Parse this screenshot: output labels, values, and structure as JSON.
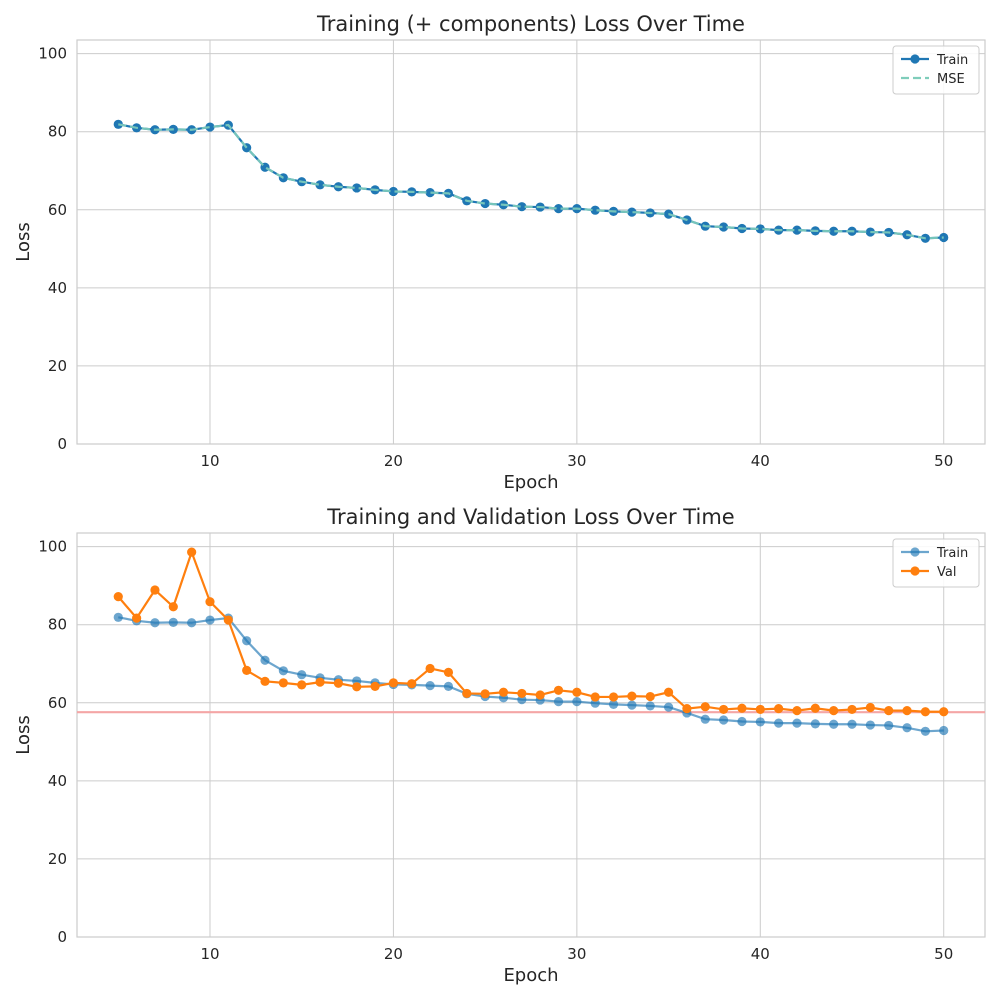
{
  "chart_data": [
    {
      "type": "line",
      "title": "Training (+ components) Loss Over Time",
      "xlabel": "Epoch",
      "ylabel": "Loss",
      "xlim": [
        2.75,
        52.25
      ],
      "ylim": [
        0,
        103.5
      ],
      "xticks": [
        "10",
        "20",
        "30",
        "40",
        "50"
      ],
      "yticks": [
        "0",
        "20",
        "40",
        "60",
        "80",
        "100"
      ],
      "legend_position": "top-right",
      "x": [
        5,
        6,
        7,
        8,
        9,
        10,
        11,
        12,
        13,
        14,
        15,
        16,
        17,
        18,
        19,
        20,
        21,
        22,
        23,
        24,
        25,
        26,
        27,
        28,
        29,
        30,
        31,
        32,
        33,
        34,
        35,
        36,
        37,
        38,
        39,
        40,
        41,
        42,
        43,
        44,
        45,
        46,
        47,
        48,
        49,
        50
      ],
      "series": [
        {
          "name": "Train",
          "color": "#1f77b4",
          "style": "solid-markers",
          "values": [
            81.9,
            81.0,
            80.5,
            80.6,
            80.5,
            81.2,
            81.7,
            75.9,
            70.9,
            68.2,
            67.2,
            66.4,
            65.9,
            65.6,
            65.1,
            64.7,
            64.6,
            64.4,
            64.2,
            62.3,
            61.6,
            61.3,
            60.8,
            60.7,
            60.3,
            60.3,
            59.9,
            59.6,
            59.4,
            59.2,
            58.9,
            57.4,
            55.8,
            55.6,
            55.2,
            55.1,
            54.8,
            54.8,
            54.6,
            54.5,
            54.5,
            54.3,
            54.2,
            53.6,
            52.7,
            52.9
          ]
        },
        {
          "name": "MSE",
          "color": "#7fcdbb",
          "style": "dashed",
          "values": [
            81.9,
            81.0,
            80.5,
            80.6,
            80.5,
            81.2,
            81.7,
            75.9,
            70.9,
            68.2,
            67.2,
            66.4,
            65.9,
            65.6,
            65.1,
            64.7,
            64.6,
            64.4,
            64.2,
            62.3,
            61.6,
            61.3,
            60.8,
            60.7,
            60.3,
            60.3,
            59.9,
            59.6,
            59.4,
            59.2,
            58.9,
            57.4,
            55.8,
            55.6,
            55.2,
            55.1,
            54.8,
            54.8,
            54.6,
            54.5,
            54.5,
            54.3,
            54.2,
            53.6,
            52.7,
            52.9
          ]
        }
      ]
    },
    {
      "type": "line",
      "title": "Training and Validation Loss Over Time",
      "xlabel": "Epoch",
      "ylabel": "Loss",
      "xlim": [
        2.75,
        52.25
      ],
      "ylim": [
        0,
        103.5
      ],
      "xticks": [
        "10",
        "20",
        "30",
        "40",
        "50"
      ],
      "yticks": [
        "0",
        "20",
        "40",
        "60",
        "80",
        "100"
      ],
      "legend_position": "top-right",
      "hline": {
        "value": 57.6,
        "color": "#f4a6a6"
      },
      "x": [
        5,
        6,
        7,
        8,
        9,
        10,
        11,
        12,
        13,
        14,
        15,
        16,
        17,
        18,
        19,
        20,
        21,
        22,
        23,
        24,
        25,
        26,
        27,
        28,
        29,
        30,
        31,
        32,
        33,
        34,
        35,
        36,
        37,
        38,
        39,
        40,
        41,
        42,
        43,
        44,
        45,
        46,
        47,
        48,
        49,
        50
      ],
      "series": [
        {
          "name": "Train",
          "color": "#1f77b4",
          "style": "faded-markers",
          "values": [
            81.9,
            81.0,
            80.5,
            80.6,
            80.5,
            81.2,
            81.7,
            75.9,
            70.9,
            68.2,
            67.2,
            66.4,
            65.9,
            65.6,
            65.1,
            64.7,
            64.6,
            64.4,
            64.2,
            62.3,
            61.6,
            61.3,
            60.8,
            60.7,
            60.3,
            60.3,
            59.9,
            59.6,
            59.4,
            59.2,
            58.9,
            57.4,
            55.8,
            55.6,
            55.2,
            55.1,
            54.8,
            54.8,
            54.6,
            54.5,
            54.5,
            54.3,
            54.2,
            53.6,
            52.7,
            52.9
          ]
        },
        {
          "name": "Val",
          "color": "#ff7f0e",
          "style": "solid-markers",
          "values": [
            87.2,
            81.7,
            88.9,
            84.6,
            98.6,
            85.9,
            81.2,
            68.3,
            65.5,
            65.1,
            64.6,
            65.3,
            65.0,
            64.1,
            64.2,
            65.1,
            64.9,
            68.8,
            67.8,
            62.4,
            62.3,
            62.7,
            62.4,
            62.0,
            63.2,
            62.7,
            61.5,
            61.5,
            61.7,
            61.6,
            62.7,
            58.5,
            59.0,
            58.3,
            58.6,
            58.3,
            58.5,
            58.0,
            58.6,
            58.0,
            58.3,
            58.8,
            58.0,
            58.0,
            57.7,
            57.7
          ]
        }
      ]
    }
  ]
}
